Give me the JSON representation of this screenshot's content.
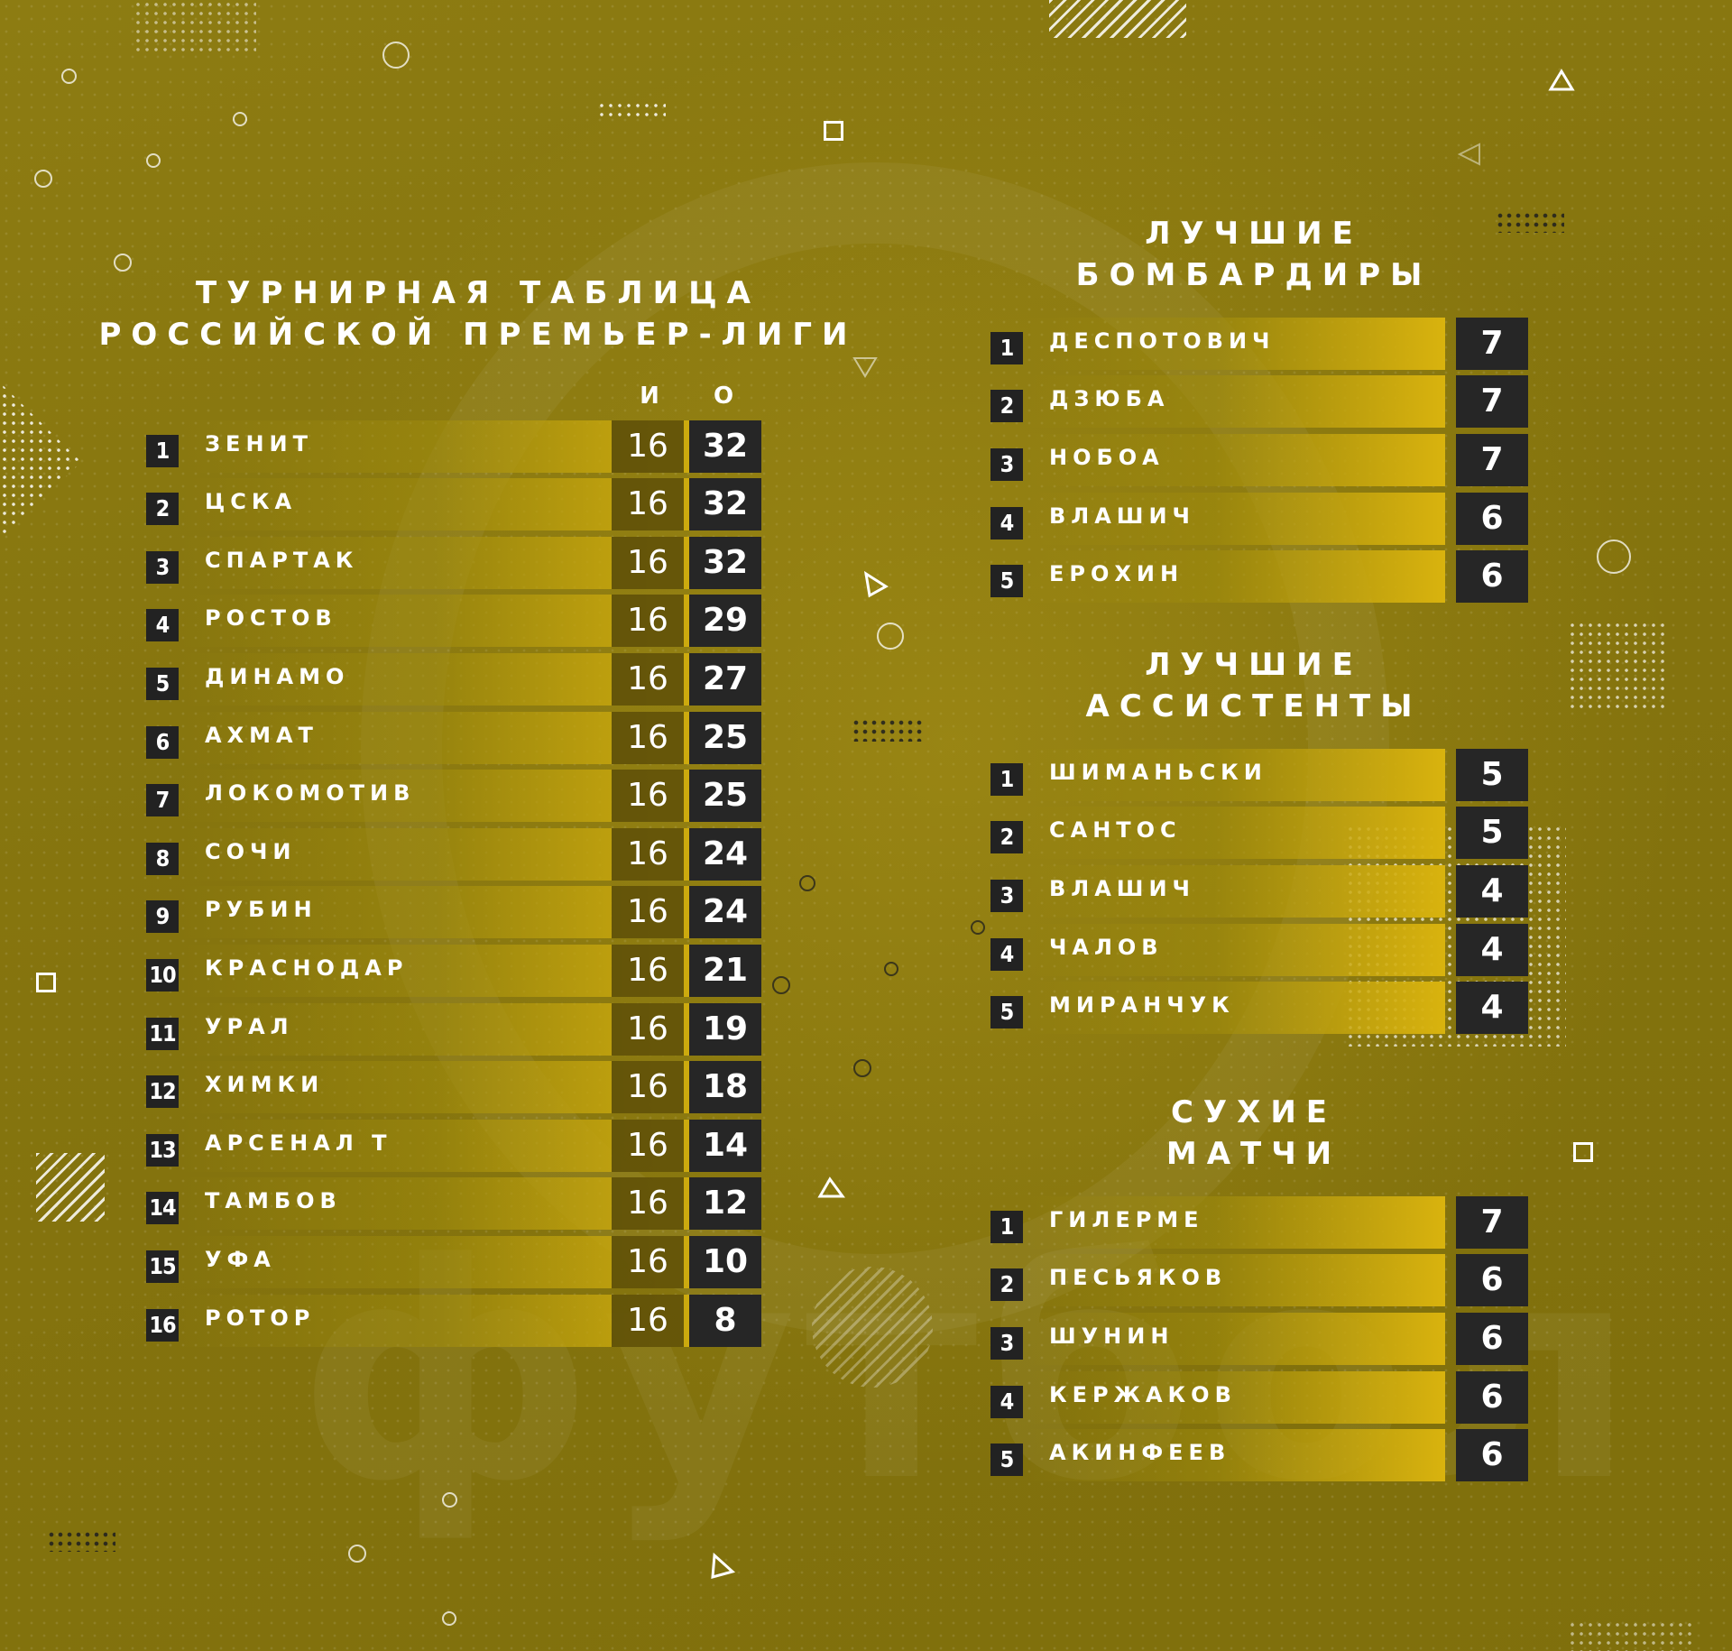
{
  "standings": {
    "title_line1": "ТУРНИРНАЯ ТАБЛИЦА",
    "title_line2": "РОССИЙСКОЙ ПРЕМЬЕР-ЛИГИ",
    "col_games": "И",
    "col_points": "О",
    "rows": [
      {
        "pos": "1",
        "team": "ЗЕНИТ",
        "games": "16",
        "points": "32"
      },
      {
        "pos": "2",
        "team": "ЦСКА",
        "games": "16",
        "points": "32"
      },
      {
        "pos": "3",
        "team": "СПАРТАК",
        "games": "16",
        "points": "32"
      },
      {
        "pos": "4",
        "team": "РОСТОВ",
        "games": "16",
        "points": "29"
      },
      {
        "pos": "5",
        "team": "ДИНАМО",
        "games": "16",
        "points": "27"
      },
      {
        "pos": "6",
        "team": "АХМАТ",
        "games": "16",
        "points": "25"
      },
      {
        "pos": "7",
        "team": "ЛОКОМОТИВ",
        "games": "16",
        "points": "25"
      },
      {
        "pos": "8",
        "team": "СОЧИ",
        "games": "16",
        "points": "24"
      },
      {
        "pos": "9",
        "team": "РУБИН",
        "games": "16",
        "points": "24"
      },
      {
        "pos": "10",
        "team": "КРАСНОДАР",
        "games": "16",
        "points": "21"
      },
      {
        "pos": "11",
        "team": "УРАЛ",
        "games": "16",
        "points": "19"
      },
      {
        "pos": "12",
        "team": "ХИМКИ",
        "games": "16",
        "points": "18"
      },
      {
        "pos": "13",
        "team": "АРСЕНАЛ Т",
        "games": "16",
        "points": "14"
      },
      {
        "pos": "14",
        "team": "ТАМБОВ",
        "games": "16",
        "points": "12"
      },
      {
        "pos": "15",
        "team": "УФА",
        "games": "16",
        "points": "10"
      },
      {
        "pos": "16",
        "team": "РОТОР",
        "games": "16",
        "points": "8"
      }
    ]
  },
  "scorers": {
    "title_line1": "ЛУЧШИЕ",
    "title_line2": "БОМБАРДИРЫ",
    "rows": [
      {
        "pos": "1",
        "name": "ДЕСПОТОВИЧ",
        "value": "7"
      },
      {
        "pos": "2",
        "name": "ДЗЮБА",
        "value": "7"
      },
      {
        "pos": "3",
        "name": "НОБОА",
        "value": "7"
      },
      {
        "pos": "4",
        "name": "ВЛАШИЧ",
        "value": "6"
      },
      {
        "pos": "5",
        "name": "ЕРОХИН",
        "value": "6"
      }
    ]
  },
  "assists": {
    "title_line1": "ЛУЧШИЕ",
    "title_line2": "АССИСТЕНТЫ",
    "rows": [
      {
        "pos": "1",
        "name": "ШИМАНЬСКИ",
        "value": "5"
      },
      {
        "pos": "2",
        "name": "САНТОС",
        "value": "5"
      },
      {
        "pos": "3",
        "name": "ВЛАШИЧ",
        "value": "4"
      },
      {
        "pos": "4",
        "name": "ЧАЛОВ",
        "value": "4"
      },
      {
        "pos": "5",
        "name": "МИРАНЧУК",
        "value": "4"
      }
    ]
  },
  "clean_sheets": {
    "title_line1": "СУХИЕ",
    "title_line2": "МАТЧИ",
    "rows": [
      {
        "pos": "1",
        "name": "ГИЛЕРМЕ",
        "value": "7"
      },
      {
        "pos": "2",
        "name": "ПЕСЬЯКОВ",
        "value": "6"
      },
      {
        "pos": "3",
        "name": "ШУНИН",
        "value": "6"
      },
      {
        "pos": "4",
        "name": "КЕРЖАКОВ",
        "value": "6"
      },
      {
        "pos": "5",
        "name": "АКИНФЕЕВ",
        "value": "6"
      }
    ]
  },
  "watermark": "футбол",
  "colors": {
    "background": "#8b7a10",
    "bar_accent": "#d9b30e",
    "dark_cell": "#262626",
    "text": "#ffffff"
  }
}
